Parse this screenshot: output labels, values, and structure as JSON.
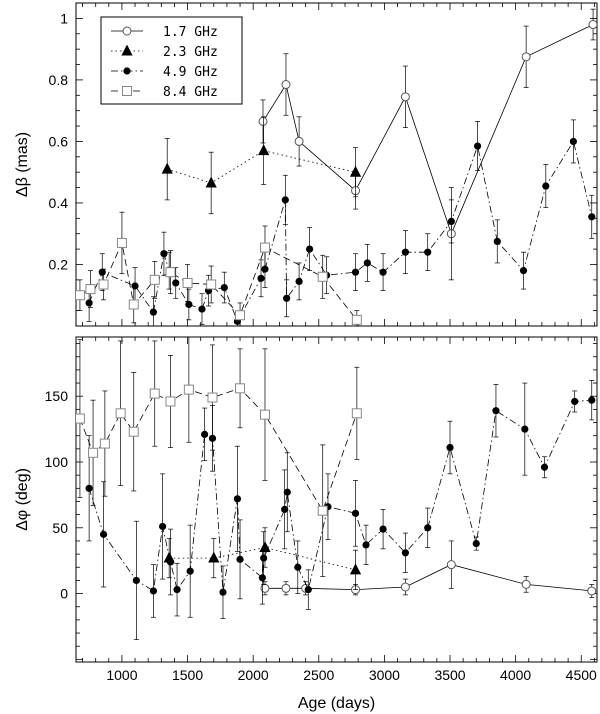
{
  "chart_data": [
    {
      "type": "scatter",
      "ylabel": "Δβ (mas)",
      "xlim": [
        650,
        4620
      ],
      "ylim": [
        0,
        1.05
      ],
      "yticks": [
        0.2,
        0.4,
        0.6,
        0.8,
        1
      ],
      "ytick_labels": [
        "0.2",
        "0.4",
        "0.6",
        "0.8",
        "1"
      ],
      "legend": {
        "placement": "top-left",
        "entries": [
          {
            "label": "1.7 GHz",
            "marker": "open-circle",
            "line": "solid"
          },
          {
            "label": "2.3 GHz",
            "marker": "filled-triangle",
            "line": "dotted"
          },
          {
            "label": "4.9 GHz",
            "marker": "filled-circle",
            "line": "dash-dot"
          },
          {
            "label": "8.4 GHz",
            "marker": "open-square",
            "line": "dashed"
          }
        ]
      },
      "series": [
        {
          "marker": "open-circle",
          "line": "solid",
          "x": [
            2075,
            2250,
            2350,
            2780,
            3160,
            3510,
            4080,
            4590
          ],
          "y": [
            0.665,
            0.785,
            0.6,
            0.44,
            0.745,
            0.3,
            0.875,
            0.98
          ],
          "err": [
            0.07,
            0.1,
            0.08,
            0.06,
            0.1,
            0.15,
            0.1,
            0.05
          ]
        },
        {
          "marker": "filled-triangle",
          "line": "dotted",
          "x": [
            1345,
            1680,
            2080,
            2780
          ],
          "y": [
            0.51,
            0.465,
            0.57,
            0.5
          ],
          "err": [
            0.1,
            0.1,
            0.11,
            0.08
          ]
        },
        {
          "marker": "filled-circle",
          "line": "dash-dot",
          "x": [
            750,
            850,
            1100,
            1240,
            1320,
            1360,
            1410,
            1510,
            1610,
            1660,
            1780,
            1880,
            2060,
            2090,
            2245,
            2255,
            2350,
            2430,
            2560,
            2780,
            2870,
            2990,
            3160,
            3330,
            3510,
            3710,
            3860,
            4060,
            4230,
            4440,
            4580
          ],
          "y": [
            0.075,
            0.175,
            0.13,
            0.045,
            0.235,
            0.18,
            0.14,
            0.07,
            0.055,
            0.115,
            0.125,
            0.015,
            0.155,
            0.185,
            0.41,
            0.09,
            0.145,
            0.25,
            0.165,
            0.175,
            0.205,
            0.175,
            0.24,
            0.24,
            0.34,
            0.585,
            0.275,
            0.18,
            0.455,
            0.6,
            0.355
          ],
          "err": [
            0.06,
            0.06,
            0.06,
            0.05,
            0.07,
            0.06,
            0.05,
            0.05,
            0.05,
            0.05,
            0.05,
            0.03,
            0.06,
            0.06,
            0.08,
            0.06,
            0.06,
            0.07,
            0.06,
            0.06,
            0.06,
            0.06,
            0.07,
            0.06,
            0.07,
            0.08,
            0.07,
            0.06,
            0.07,
            0.07,
            0.07
          ]
        },
        {
          "marker": "open-square",
          "line": "dashed",
          "x": [
            680,
            760,
            860,
            1000,
            1090,
            1250,
            1370,
            1500,
            1680,
            1900,
            2090,
            2530,
            2790
          ],
          "y": [
            0.1,
            0.12,
            0.135,
            0.27,
            0.07,
            0.15,
            0.175,
            0.14,
            0.135,
            0.035,
            0.255,
            0.16,
            0.02
          ],
          "err": [
            0.05,
            0.06,
            0.05,
            0.1,
            0.06,
            0.06,
            0.07,
            0.06,
            0.06,
            0.04,
            0.07,
            0.07,
            0.03
          ]
        }
      ]
    },
    {
      "type": "scatter",
      "xlabel": "Age (days)",
      "ylabel": "Δφ (deg)",
      "xlim": [
        650,
        4620
      ],
      "ylim": [
        -52,
        195
      ],
      "xticks": [
        1000,
        1500,
        2000,
        2500,
        3000,
        3500,
        4000,
        4500
      ],
      "xtick_labels": [
        "1000",
        "1500",
        "2000",
        "2500",
        "3000",
        "3500",
        "4000",
        "4500"
      ],
      "yticks": [
        0,
        50,
        100,
        150
      ],
      "ytick_labels": [
        "0",
        "50",
        "100",
        "150"
      ],
      "series": [
        {
          "marker": "open-circle",
          "line": "solid",
          "x": [
            2090,
            2250,
            2400,
            2780,
            3160,
            3510,
            4080,
            4580
          ],
          "y": [
            4,
            4,
            4,
            3,
            5,
            22,
            7,
            2
          ],
          "err": [
            5,
            5,
            5,
            4,
            6,
            18,
            6,
            5
          ]
        },
        {
          "marker": "filled-triangle",
          "line": "dotted",
          "x": [
            1360,
            1700,
            2090,
            2780
          ],
          "y": [
            27,
            27,
            35,
            18
          ],
          "err": [
            15,
            15,
            15,
            15
          ]
        },
        {
          "marker": "filled-circle",
          "line": "dash-dot",
          "x": [
            750,
            860,
            1110,
            1240,
            1310,
            1370,
            1420,
            1520,
            1630,
            1690,
            1770,
            1880,
            1900,
            2070,
            2080,
            2240,
            2260,
            2340,
            2420,
            2570,
            2780,
            2860,
            2990,
            3160,
            3330,
            3500,
            3700,
            3850,
            4070,
            4220,
            4450,
            4580
          ],
          "y": [
            80,
            45,
            10,
            2,
            51,
            24,
            3,
            17,
            121,
            118,
            1,
            72,
            26,
            12,
            27,
            64,
            77,
            20,
            3,
            66,
            61,
            37,
            49,
            31,
            50,
            111,
            38,
            139,
            125,
            96,
            146,
            147
          ],
          "err": [
            40,
            40,
            45,
            20,
            40,
            25,
            20,
            35,
            20,
            25,
            20,
            40,
            30,
            20,
            20,
            30,
            30,
            20,
            15,
            25,
            25,
            15,
            15,
            15,
            15,
            20,
            5,
            20,
            35,
            8,
            8,
            15
          ]
        },
        {
          "marker": "open-square",
          "line": "dashed",
          "x": [
            680,
            780,
            870,
            990,
            1090,
            1250,
            1370,
            1510,
            1690,
            1900,
            2090,
            2530,
            2790
          ],
          "y": [
            133,
            107,
            114,
            137,
            123,
            152,
            146,
            155,
            149,
            156,
            136,
            63,
            137
          ],
          "err": [
            60,
            40,
            40,
            55,
            45,
            40,
            35,
            40,
            40,
            30,
            50,
            50,
            35
          ]
        }
      ]
    }
  ]
}
